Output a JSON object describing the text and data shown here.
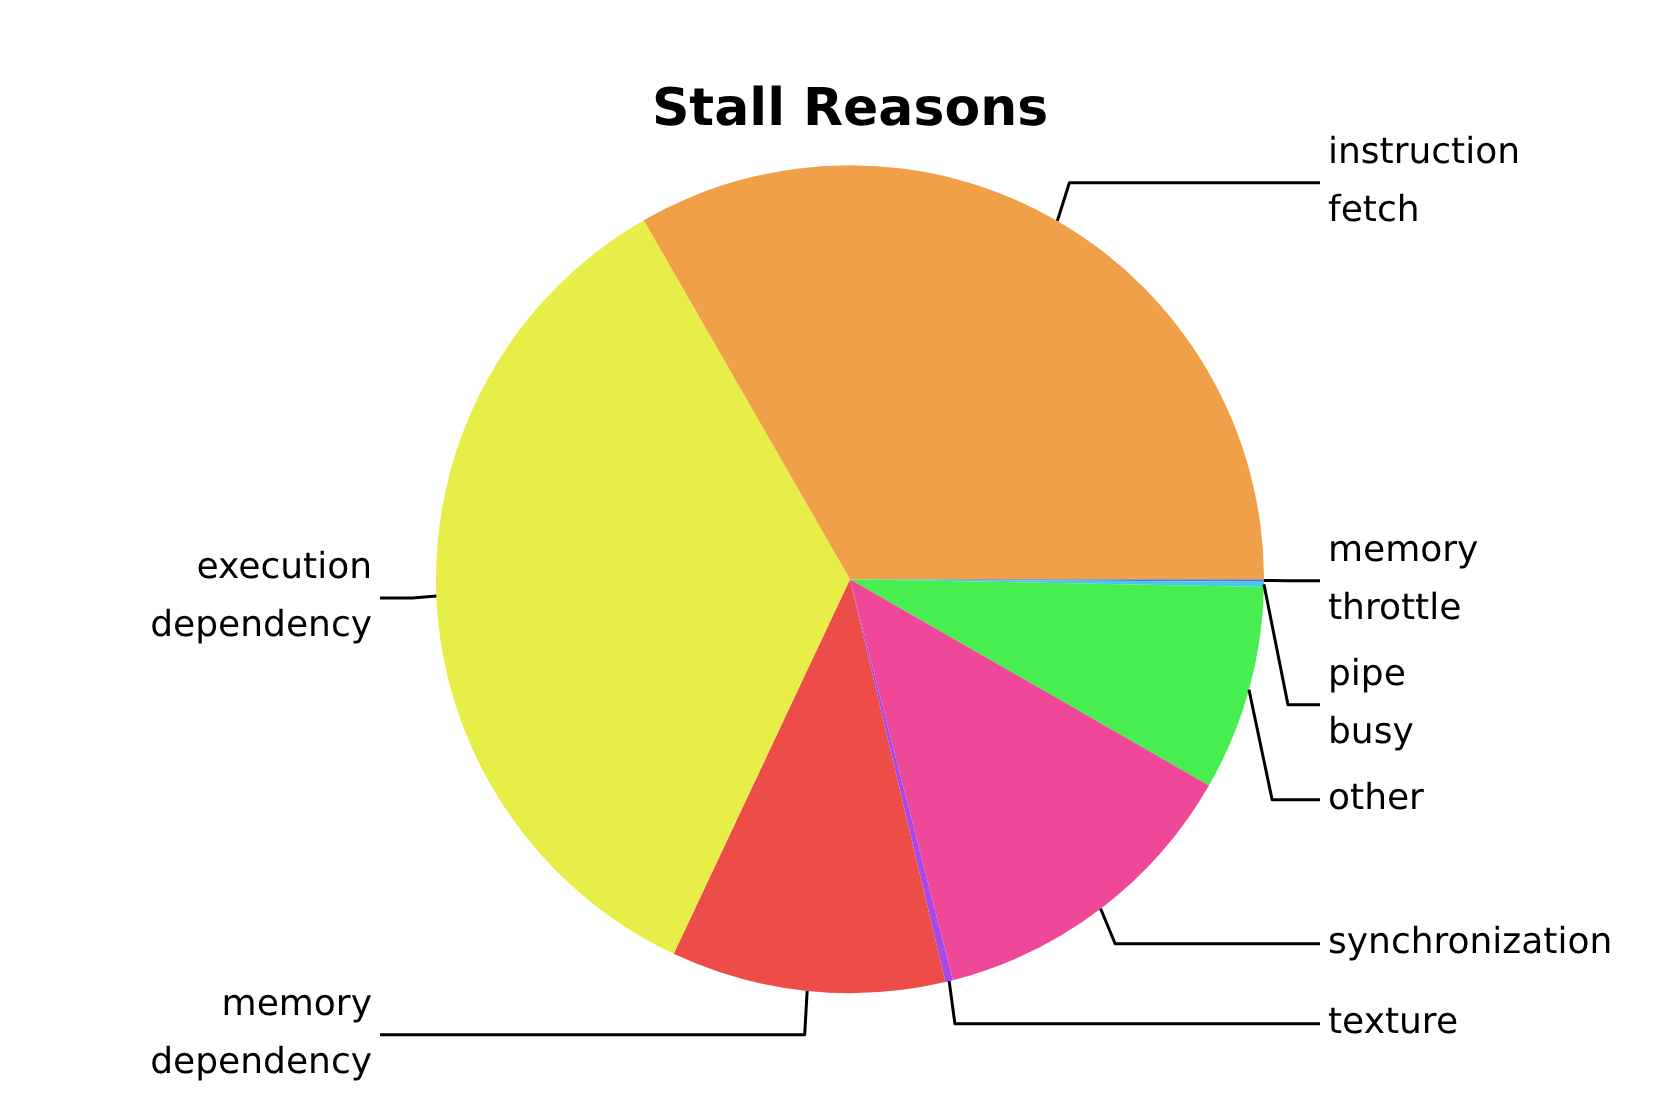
{
  "chart_data": {
    "type": "pie",
    "title": "Stall Reasons",
    "categories": [
      "memory throttle",
      "pipe busy",
      "other",
      "synchronization",
      "texture",
      "memory dependency",
      "execution dependency",
      "instruction fetch"
    ],
    "values": [
      0.1,
      0.2,
      8.0,
      12.7,
      0.3,
      10.7,
      34.7,
      33.3
    ],
    "colors": [
      "#4878e8",
      "#48c8e8",
      "#48ee50",
      "#f04898",
      "#a848e8",
      "#ee4c48",
      "#e8ee48",
      "#f0a048"
    ],
    "legend": false
  }
}
